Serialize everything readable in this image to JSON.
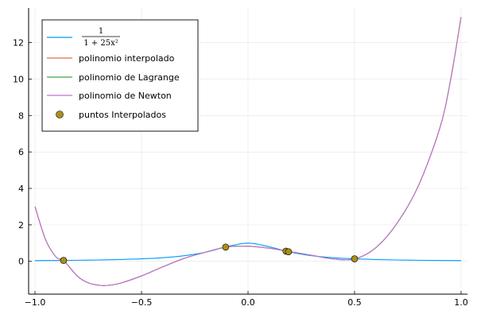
{
  "chart_data": {
    "type": "line",
    "title": "",
    "xlabel": "",
    "ylabel": "",
    "xlim": [
      -1.03,
      1.03
    ],
    "ylim": [
      -1.8,
      13.9
    ],
    "grid": true,
    "legend_position": "top-left",
    "x_ticks": [
      -1.0,
      -0.5,
      0.0,
      0.5,
      1.0
    ],
    "x_tick_labels": [
      "−1.0",
      "−0.5",
      "0.0",
      "0.5",
      "1.0"
    ],
    "y_ticks": [
      0,
      2,
      4,
      6,
      8,
      10,
      12
    ],
    "y_tick_labels": [
      "0",
      "2",
      "4",
      "6",
      "8",
      "10",
      "12"
    ],
    "series": [
      {
        "name": "1 / (1 + 25x²)",
        "name_numerator": "1",
        "name_denominator": "1 + 25x²",
        "color": "#009AFA",
        "x": [
          -1.0,
          -0.9,
          -0.8,
          -0.7,
          -0.6,
          -0.5,
          -0.4,
          -0.3,
          -0.2,
          -0.1,
          0.0,
          0.1,
          0.2,
          0.3,
          0.4,
          0.5,
          0.6,
          0.7,
          0.8,
          0.9,
          1.0
        ],
        "y": [
          0.038,
          0.047,
          0.059,
          0.075,
          0.1,
          0.138,
          0.2,
          0.308,
          0.5,
          0.8,
          1.0,
          0.8,
          0.5,
          0.308,
          0.2,
          0.138,
          0.1,
          0.075,
          0.059,
          0.047,
          0.038
        ]
      },
      {
        "name": "polinomio interpolado",
        "color": "#E26F46",
        "x": [
          -1.0,
          -0.95,
          -0.9,
          -0.866,
          -0.8,
          -0.75,
          -0.7,
          -0.66,
          -0.6,
          -0.5,
          -0.4,
          -0.3,
          -0.2,
          -0.1,
          0.0,
          0.1,
          0.178,
          0.2,
          0.3,
          0.4,
          0.5,
          0.6,
          0.7,
          0.8,
          0.9,
          0.95,
          1.0
        ],
        "y": [
          3.0,
          1.18,
          0.22,
          0.048,
          -0.82,
          -1.18,
          -1.31,
          -1.32,
          -1.2,
          -0.8,
          -0.3,
          0.16,
          0.5,
          0.79,
          0.83,
          0.72,
          0.57,
          0.53,
          0.33,
          0.13,
          0.13,
          0.75,
          2.1,
          4.15,
          7.3,
          9.9,
          13.4
        ]
      },
      {
        "name": "polinomio de Lagrange",
        "color": "#3DA44D",
        "x": [
          -1.0,
          -0.95,
          -0.9,
          -0.866,
          -0.8,
          -0.75,
          -0.7,
          -0.66,
          -0.6,
          -0.5,
          -0.4,
          -0.3,
          -0.2,
          -0.1,
          0.0,
          0.1,
          0.178,
          0.2,
          0.3,
          0.4,
          0.5,
          0.6,
          0.7,
          0.8,
          0.9,
          0.95,
          1.0
        ],
        "y": [
          3.0,
          1.18,
          0.22,
          0.048,
          -0.82,
          -1.18,
          -1.31,
          -1.32,
          -1.2,
          -0.8,
          -0.3,
          0.16,
          0.5,
          0.79,
          0.83,
          0.72,
          0.57,
          0.53,
          0.33,
          0.13,
          0.13,
          0.75,
          2.1,
          4.15,
          7.3,
          9.9,
          13.4
        ]
      },
      {
        "name": "polinomio de Newton",
        "color": "#C271D2",
        "x": [
          -1.0,
          -0.95,
          -0.9,
          -0.866,
          -0.8,
          -0.75,
          -0.7,
          -0.66,
          -0.6,
          -0.5,
          -0.4,
          -0.3,
          -0.2,
          -0.1,
          0.0,
          0.1,
          0.178,
          0.2,
          0.3,
          0.4,
          0.5,
          0.6,
          0.7,
          0.8,
          0.9,
          0.95,
          1.0
        ],
        "y": [
          3.0,
          1.18,
          0.22,
          0.048,
          -0.82,
          -1.18,
          -1.31,
          -1.32,
          -1.2,
          -0.8,
          -0.3,
          0.16,
          0.5,
          0.79,
          0.83,
          0.72,
          0.57,
          0.53,
          0.33,
          0.13,
          0.13,
          0.75,
          2.1,
          4.15,
          7.3,
          9.9,
          13.4
        ]
      }
    ],
    "points": {
      "name": "puntos Interpolados",
      "color": "#AC8E18",
      "x": [
        -0.866,
        -0.105,
        0.178,
        0.19,
        0.5
      ],
      "y": [
        0.05,
        0.78,
        0.558,
        0.525,
        0.138
      ]
    }
  }
}
